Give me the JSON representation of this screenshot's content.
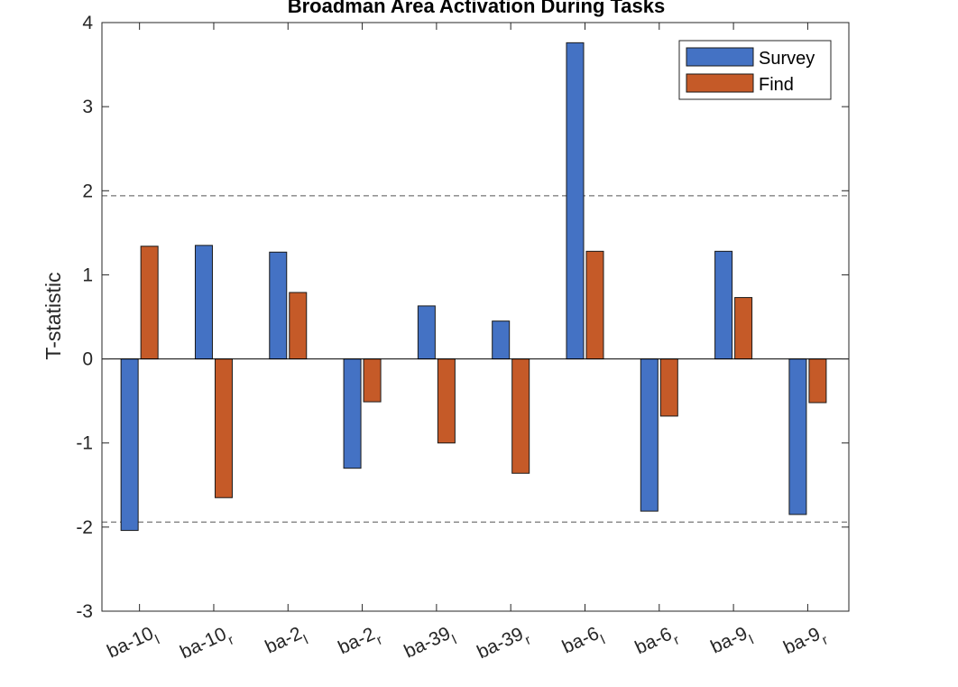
{
  "chart_data": {
    "type": "bar",
    "title": "Broadman Area Activation During Tasks",
    "xlabel": "",
    "ylabel": "T-statistic",
    "ylim": [
      -3,
      4
    ],
    "yticks": [
      -3,
      -2,
      -1,
      0,
      1,
      2,
      3,
      4
    ],
    "ytick_labels": [
      "-3",
      "-2",
      "-1",
      "0",
      "1",
      "2",
      "3",
      "4"
    ],
    "categories": [
      {
        "base": "ba-10",
        "sub": "l"
      },
      {
        "base": "ba-10",
        "sub": "r"
      },
      {
        "base": "ba-2",
        "sub": "l"
      },
      {
        "base": "ba-2",
        "sub": "r"
      },
      {
        "base": "ba-39",
        "sub": "l"
      },
      {
        "base": "ba-39",
        "sub": "r"
      },
      {
        "base": "ba-6",
        "sub": "l"
      },
      {
        "base": "ba-6",
        "sub": "r"
      },
      {
        "base": "ba-9",
        "sub": "l"
      },
      {
        "base": "ba-9",
        "sub": "r"
      }
    ],
    "series": [
      {
        "name": "Survey",
        "color": "#4472C4",
        "values": [
          -2.04,
          1.35,
          1.27,
          -1.3,
          0.63,
          0.45,
          3.76,
          -1.81,
          1.28,
          -1.85
        ]
      },
      {
        "name": "Find",
        "color": "#C55A28",
        "values": [
          1.34,
          -1.65,
          0.79,
          -0.51,
          -1.0,
          -1.36,
          1.28,
          -0.68,
          0.73,
          -0.52
        ]
      }
    ],
    "reference_lines": [
      1.94,
      -1.94
    ],
    "legend_position": "top-right",
    "grid": false
  }
}
